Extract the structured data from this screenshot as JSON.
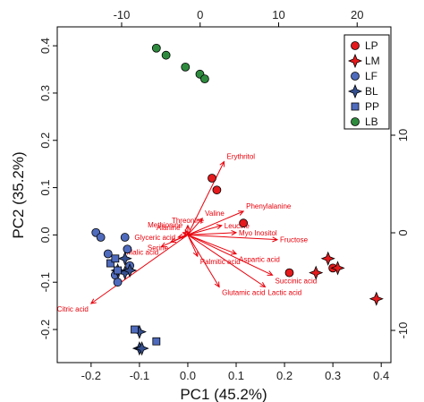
{
  "chart_data": {
    "type": "scatter",
    "title": "",
    "xlabel": "PC1 (45.2%)",
    "ylabel": "PC2 (35.2%)",
    "xlim": [
      -0.27,
      0.42
    ],
    "ylim": [
      -0.27,
      0.44
    ],
    "x_ticks": [
      "-0.2",
      "-0.1",
      "0.0",
      "0.1",
      "0.2",
      "0.3",
      "0.4"
    ],
    "y_ticks": [
      "-0.2",
      "-0.1",
      "0.0",
      "0.1",
      "0.2",
      "0.3",
      "0.4"
    ],
    "top_axis_ticks": [
      "-10",
      "0",
      "10",
      "20"
    ],
    "right_axis_ticks": [
      "-10",
      "0",
      "10"
    ],
    "secondary_axes": {
      "top_xlim": [
        -18.2,
        24.3
      ],
      "right_ylim": [
        -13.3,
        21.1
      ]
    },
    "grid": false,
    "legend_position": "top-right",
    "series": [
      {
        "name": "LP",
        "marker": "circle",
        "color": "#e41a1c",
        "points": [
          [
            0.05,
            0.12
          ],
          [
            0.06,
            0.095
          ],
          [
            0.115,
            0.025
          ],
          [
            0.21,
            -0.08
          ],
          [
            0.3,
            -0.07
          ]
        ]
      },
      {
        "name": "LM",
        "marker": "star4",
        "color": "#e41a1c",
        "points": [
          [
            0.265,
            -0.08
          ],
          [
            0.29,
            -0.05
          ],
          [
            0.31,
            -0.07
          ],
          [
            0.39,
            -0.135
          ]
        ]
      },
      {
        "name": "LF",
        "marker": "circle",
        "color": "#4f6bbd",
        "points": [
          [
            -0.19,
            0.005
          ],
          [
            -0.18,
            -0.005
          ],
          [
            -0.165,
            -0.04
          ],
          [
            -0.15,
            -0.085
          ],
          [
            -0.145,
            -0.1
          ],
          [
            -0.13,
            -0.005
          ],
          [
            -0.125,
            -0.03
          ],
          [
            -0.12,
            -0.065
          ]
        ]
      },
      {
        "name": "BL",
        "marker": "star4",
        "color": "#354f8e",
        "points": [
          [
            -0.145,
            -0.075
          ],
          [
            -0.13,
            -0.08
          ],
          [
            -0.12,
            -0.075
          ],
          [
            -0.13,
            -0.05
          ],
          [
            -0.1,
            -0.205
          ],
          [
            -0.1,
            -0.24
          ],
          [
            -0.095,
            -0.24
          ]
        ]
      },
      {
        "name": "PP",
        "marker": "square",
        "color": "#4f6bbd",
        "points": [
          [
            -0.16,
            -0.06
          ],
          [
            -0.15,
            -0.05
          ],
          [
            -0.145,
            -0.075
          ],
          [
            -0.11,
            -0.2
          ],
          [
            -0.065,
            -0.225
          ]
        ]
      },
      {
        "name": "LB",
        "marker": "circle",
        "color": "#2e8b3e",
        "points": [
          [
            -0.065,
            0.395
          ],
          [
            -0.045,
            0.38
          ],
          [
            -0.005,
            0.355
          ],
          [
            0.025,
            0.34
          ],
          [
            0.035,
            0.33
          ]
        ]
      }
    ],
    "loadings": [
      {
        "label": "Erythritol",
        "x": 0.075,
        "y": 0.155
      },
      {
        "label": "Phenylalanine",
        "x": 0.115,
        "y": 0.05
      },
      {
        "label": "Valine",
        "x": 0.03,
        "y": 0.035
      },
      {
        "label": "Leucine",
        "x": 0.07,
        "y": 0.02
      },
      {
        "label": "Threonine",
        "x": 0.0,
        "y": 0.02
      },
      {
        "label": "Methionine",
        "x": -0.005,
        "y": 0.01
      },
      {
        "label": "Myo Inositol",
        "x": 0.1,
        "y": 0.005
      },
      {
        "label": "Alanine",
        "x": -0.01,
        "y": 0.005
      },
      {
        "label": "Glyceric acid",
        "x": -0.02,
        "y": -0.005
      },
      {
        "label": "Serine",
        "x": -0.035,
        "y": -0.015
      },
      {
        "label": "Fructose",
        "x": 0.185,
        "y": -0.01
      },
      {
        "label": "Malic acid",
        "x": -0.055,
        "y": -0.025
      },
      {
        "label": "Aspartic acid",
        "x": 0.1,
        "y": -0.04
      },
      {
        "label": "Palmitic acid",
        "x": 0.02,
        "y": -0.045
      },
      {
        "label": "Succinic acid",
        "x": 0.175,
        "y": -0.085
      },
      {
        "label": "Glutamic acid",
        "x": 0.065,
        "y": -0.11
      },
      {
        "label": "Lactic acid",
        "x": 0.16,
        "y": -0.11
      },
      {
        "label": "Citric acid",
        "x": -0.2,
        "y": -0.145
      }
    ]
  }
}
